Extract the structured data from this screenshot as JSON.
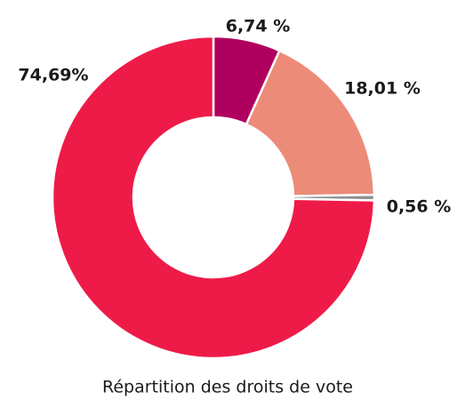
{
  "chart_data": {
    "type": "pie",
    "donut": true,
    "title": "Répartition des droits de vote",
    "values": [
      6.74,
      18.01,
      0.56,
      74.69
    ],
    "value_labels": [
      "6,74 %",
      "18,01 %",
      "0,56 %",
      "74,69%"
    ],
    "colors": [
      "#b0005f",
      "#ec8b78",
      "#8e9092",
      "#ee1b48"
    ]
  }
}
